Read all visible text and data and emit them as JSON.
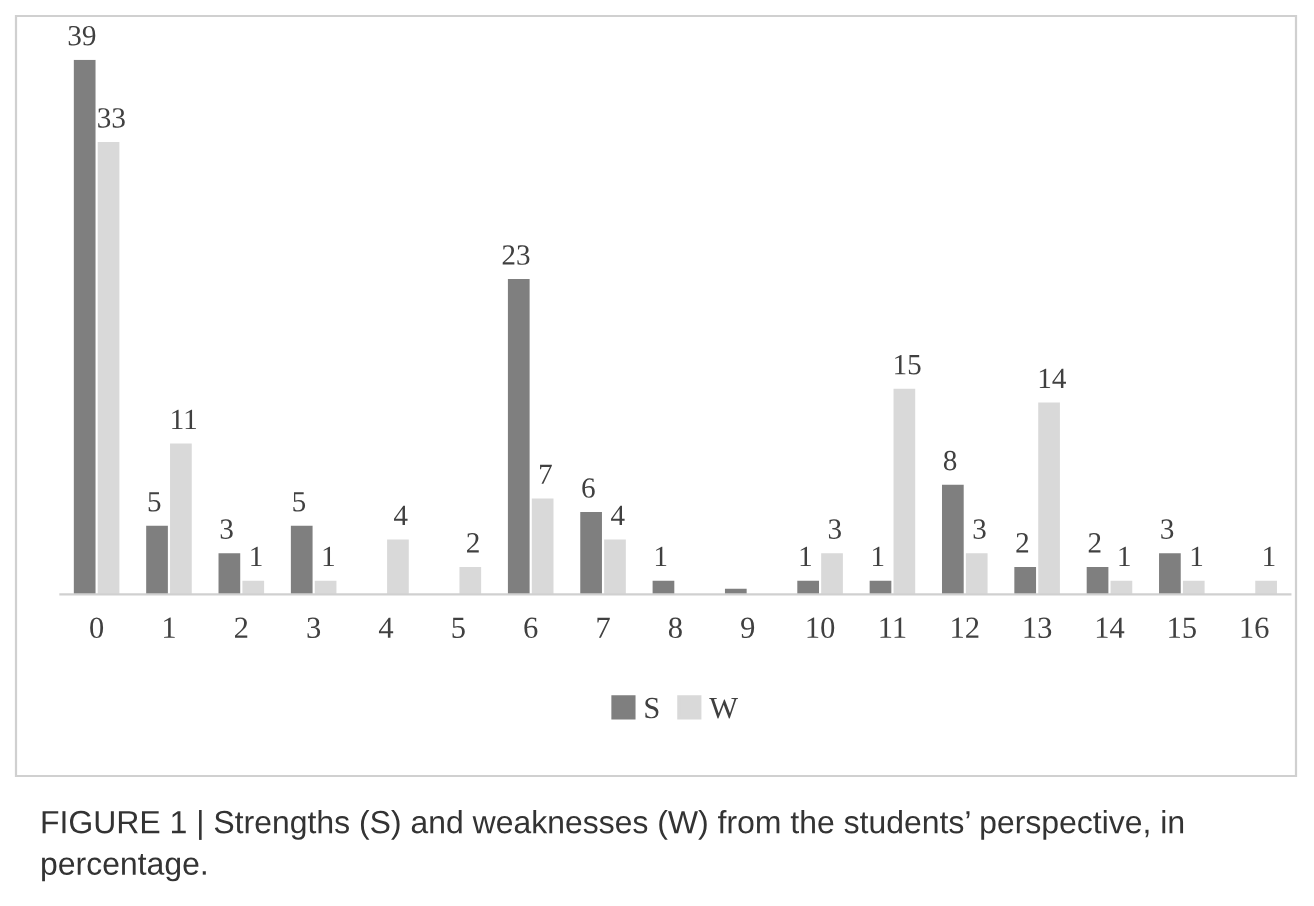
{
  "chart_data": {
    "type": "bar",
    "categories": [
      "0",
      "1",
      "2",
      "3",
      "4",
      "5",
      "6",
      "7",
      "8",
      "9",
      "10",
      "11",
      "12",
      "13",
      "14",
      "15",
      "16"
    ],
    "series": [
      {
        "name": "S",
        "color": "#7f7f7f",
        "values": [
          39,
          5,
          3,
          5,
          0,
          0,
          23,
          6,
          1,
          0.4,
          1,
          1,
          8,
          2,
          2,
          3,
          null
        ],
        "value_labels": [
          "39",
          "5",
          "3",
          "5",
          null,
          null,
          "23",
          "6",
          "1",
          null,
          "1",
          "1",
          "8",
          "2",
          "2",
          "3",
          null
        ]
      },
      {
        "name": "W",
        "color": "#d9d9d9",
        "values": [
          33,
          11,
          1,
          1,
          4,
          2,
          7,
          4,
          0,
          0,
          3,
          15,
          3,
          14,
          1,
          1,
          1
        ],
        "value_labels": [
          "33",
          "11",
          "1",
          "1",
          "4",
          "2",
          "7",
          "4",
          null,
          null,
          "3",
          "15",
          "3",
          "14",
          "1",
          "1",
          "1"
        ]
      }
    ],
    "legend": "bottom",
    "grid": false,
    "annotations": [
      "FIGURE 1 | Strengths (S) and weaknesses (W) from the students’ perspective, in percentage."
    ]
  }
}
